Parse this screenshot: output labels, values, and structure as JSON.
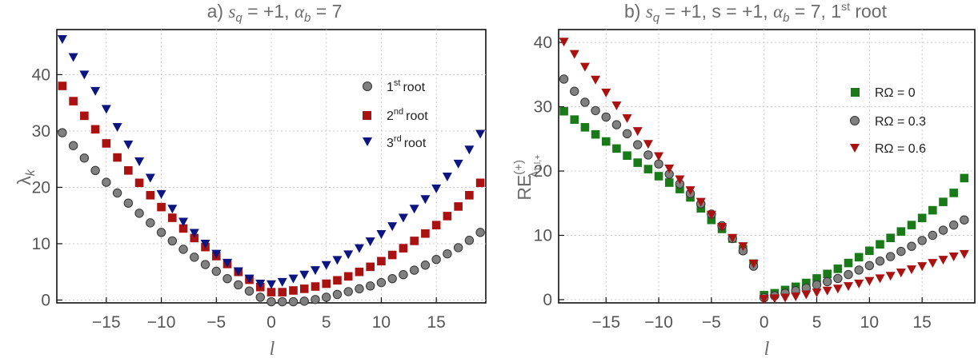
{
  "panels": [
    {
      "title_parts": [
        "a) ",
        "s",
        "q",
        " = +1, ",
        "α",
        "b",
        " = 7",
        "",
        ""
      ],
      "xlabel": "l",
      "ylabel_main": "λ",
      "ylabel_sub": "k",
      "legend_sup": [
        "st",
        "nd",
        "rd"
      ],
      "legend_num": [
        "1",
        "2",
        "3"
      ],
      "legend_word": "root"
    },
    {
      "title_parts": [
        "b) ",
        "s",
        "q",
        " = +1, s = +1, ",
        "α",
        "b",
        " = 7, 1",
        "st",
        " root"
      ],
      "xlabel": "l",
      "ylabel_main": "RE",
      "ylabel_sup": "(+)",
      "ylabel_sub": "λ",
      "ylabel_sub2": "1,l,+",
      "legend_labels": [
        "RΩ = 0",
        "RΩ = 0.3",
        "RΩ = 0.6"
      ]
    }
  ],
  "chart_data": [
    {
      "type": "scatter",
      "title": "a) s_q = +1, α_b = 7",
      "xlabel": "l",
      "ylabel": "λ_k",
      "xlim": [
        -19.5,
        19.5
      ],
      "ylim": [
        -0.5,
        48
      ],
      "xticks": [
        -15,
        -10,
        -5,
        0,
        5,
        10,
        15
      ],
      "yticks": [
        0,
        10,
        20,
        30,
        40
      ],
      "grid": true,
      "legend_position": "top-right",
      "x": [
        -19,
        -18,
        -17,
        -16,
        -15,
        -14,
        -13,
        -12,
        -11,
        -10,
        -9,
        -8,
        -7,
        -6,
        -5,
        -4,
        -3,
        -2,
        -1,
        0,
        1,
        2,
        3,
        4,
        5,
        6,
        7,
        8,
        9,
        10,
        11,
        12,
        13,
        14,
        15,
        16,
        17,
        18,
        19
      ],
      "series": [
        {
          "name": "1st root",
          "marker": "circle",
          "color": "#808080",
          "values": [
            29.7,
            27.4,
            25.2,
            23.0,
            20.9,
            19.0,
            17.2,
            15.4,
            13.7,
            12.0,
            10.5,
            9.0,
            7.6,
            6.3,
            5.1,
            3.8,
            2.7,
            1.6,
            0.5,
            -0.3,
            -0.3,
            -0.3,
            -0.2,
            0.1,
            0.5,
            1.0,
            1.5,
            2.0,
            2.5,
            3.1,
            3.8,
            4.5,
            5.3,
            6.2,
            7.2,
            8.2,
            9.3,
            10.6,
            12.0
          ]
        },
        {
          "name": "2nd root",
          "marker": "square",
          "color": "#aa1111",
          "values": [
            38.0,
            35.3,
            32.7,
            30.3,
            27.8,
            25.3,
            23.0,
            20.8,
            18.6,
            16.5,
            14.6,
            12.7,
            11.0,
            9.4,
            7.8,
            6.4,
            5.0,
            3.6,
            2.3,
            1.4,
            1.4,
            1.7,
            2.0,
            2.4,
            2.9,
            3.5,
            4.2,
            5.0,
            5.9,
            6.9,
            8.0,
            9.2,
            10.5,
            11.8,
            13.3,
            14.9,
            16.6,
            18.6,
            20.8
          ]
        },
        {
          "name": "3rd root",
          "marker": "triangle-down",
          "color": "#0d1680",
          "values": [
            46.3,
            43.1,
            40.0,
            37.1,
            33.9,
            30.7,
            27.6,
            24.6,
            21.7,
            18.8,
            16.2,
            13.9,
            11.9,
            10.0,
            8.2,
            6.6,
            5.1,
            3.8,
            2.9,
            2.8,
            3.2,
            3.8,
            4.5,
            5.3,
            6.2,
            7.1,
            8.1,
            9.2,
            10.4,
            11.7,
            13.1,
            14.6,
            16.2,
            17.9,
            19.8,
            21.9,
            24.2,
            26.7,
            29.5
          ]
        }
      ]
    },
    {
      "type": "scatter",
      "title": "b) s_q = +1, s = +1, α_b = 7, 1st root",
      "xlabel": "l",
      "ylabel": "RE^(+)_λ1,l,+",
      "xlim": [
        -19.5,
        20
      ],
      "ylim": [
        -0.5,
        42
      ],
      "xticks": [
        -15,
        -10,
        -5,
        0,
        5,
        10,
        15
      ],
      "yticks": [
        0,
        10,
        20,
        30,
        40
      ],
      "grid": true,
      "legend_position": "right",
      "x": [
        -19,
        -18,
        -17,
        -16,
        -15,
        -14,
        -13,
        -12,
        -11,
        -10,
        -9,
        -8,
        -7,
        -6,
        -5,
        -4,
        -3,
        -2,
        -1,
        0,
        1,
        2,
        3,
        4,
        5,
        6,
        7,
        8,
        9,
        10,
        11,
        12,
        13,
        14,
        15,
        16,
        17,
        18,
        19
      ],
      "series": [
        {
          "name": "RΩ = 0",
          "marker": "square",
          "color": "#1a7a1a",
          "values": [
            29.3,
            28.0,
            26.8,
            25.7,
            24.6,
            23.5,
            22.4,
            21.3,
            20.3,
            19.2,
            18.2,
            17.2,
            15.9,
            14.2,
            12.4,
            11.0,
            9.5,
            7.8,
            5.6,
            0.7,
            1.0,
            1.5,
            2.0,
            2.6,
            3.3,
            4.0,
            4.8,
            5.7,
            6.6,
            7.6,
            8.6,
            9.6,
            10.6,
            11.6,
            12.7,
            13.9,
            15.2,
            16.6,
            18.9
          ]
        },
        {
          "name": "RΩ = 0.3",
          "marker": "circle",
          "color": "#808080",
          "values": [
            34.3,
            32.4,
            30.7,
            29.4,
            28.4,
            27.2,
            25.8,
            24.1,
            22.5,
            21.1,
            19.5,
            18.0,
            16.5,
            14.9,
            13.3,
            11.5,
            9.5,
            7.6,
            5.2,
            0.3,
            0.6,
            1.0,
            1.4,
            1.8,
            2.3,
            2.8,
            3.3,
            3.9,
            4.6,
            5.3,
            6.0,
            6.7,
            7.5,
            8.3,
            9.2,
            10.0,
            10.8,
            11.6,
            12.4
          ]
        },
        {
          "name": "RΩ = 0.6",
          "marker": "triangle-down",
          "color": "#aa1111",
          "values": [
            40.1,
            38.2,
            36.2,
            34.2,
            32.2,
            30.2,
            28.2,
            26.2,
            24.2,
            22.3,
            20.4,
            18.7,
            17.0,
            15.2,
            13.2,
            11.3,
            9.6,
            8.3,
            5.6,
            0.1,
            0.2,
            0.3,
            0.5,
            0.8,
            1.1,
            1.4,
            1.7,
            2.1,
            2.5,
            2.9,
            3.3,
            3.7,
            4.2,
            4.7,
            5.2,
            5.7,
            6.2,
            6.7,
            7.1
          ]
        }
      ]
    }
  ]
}
